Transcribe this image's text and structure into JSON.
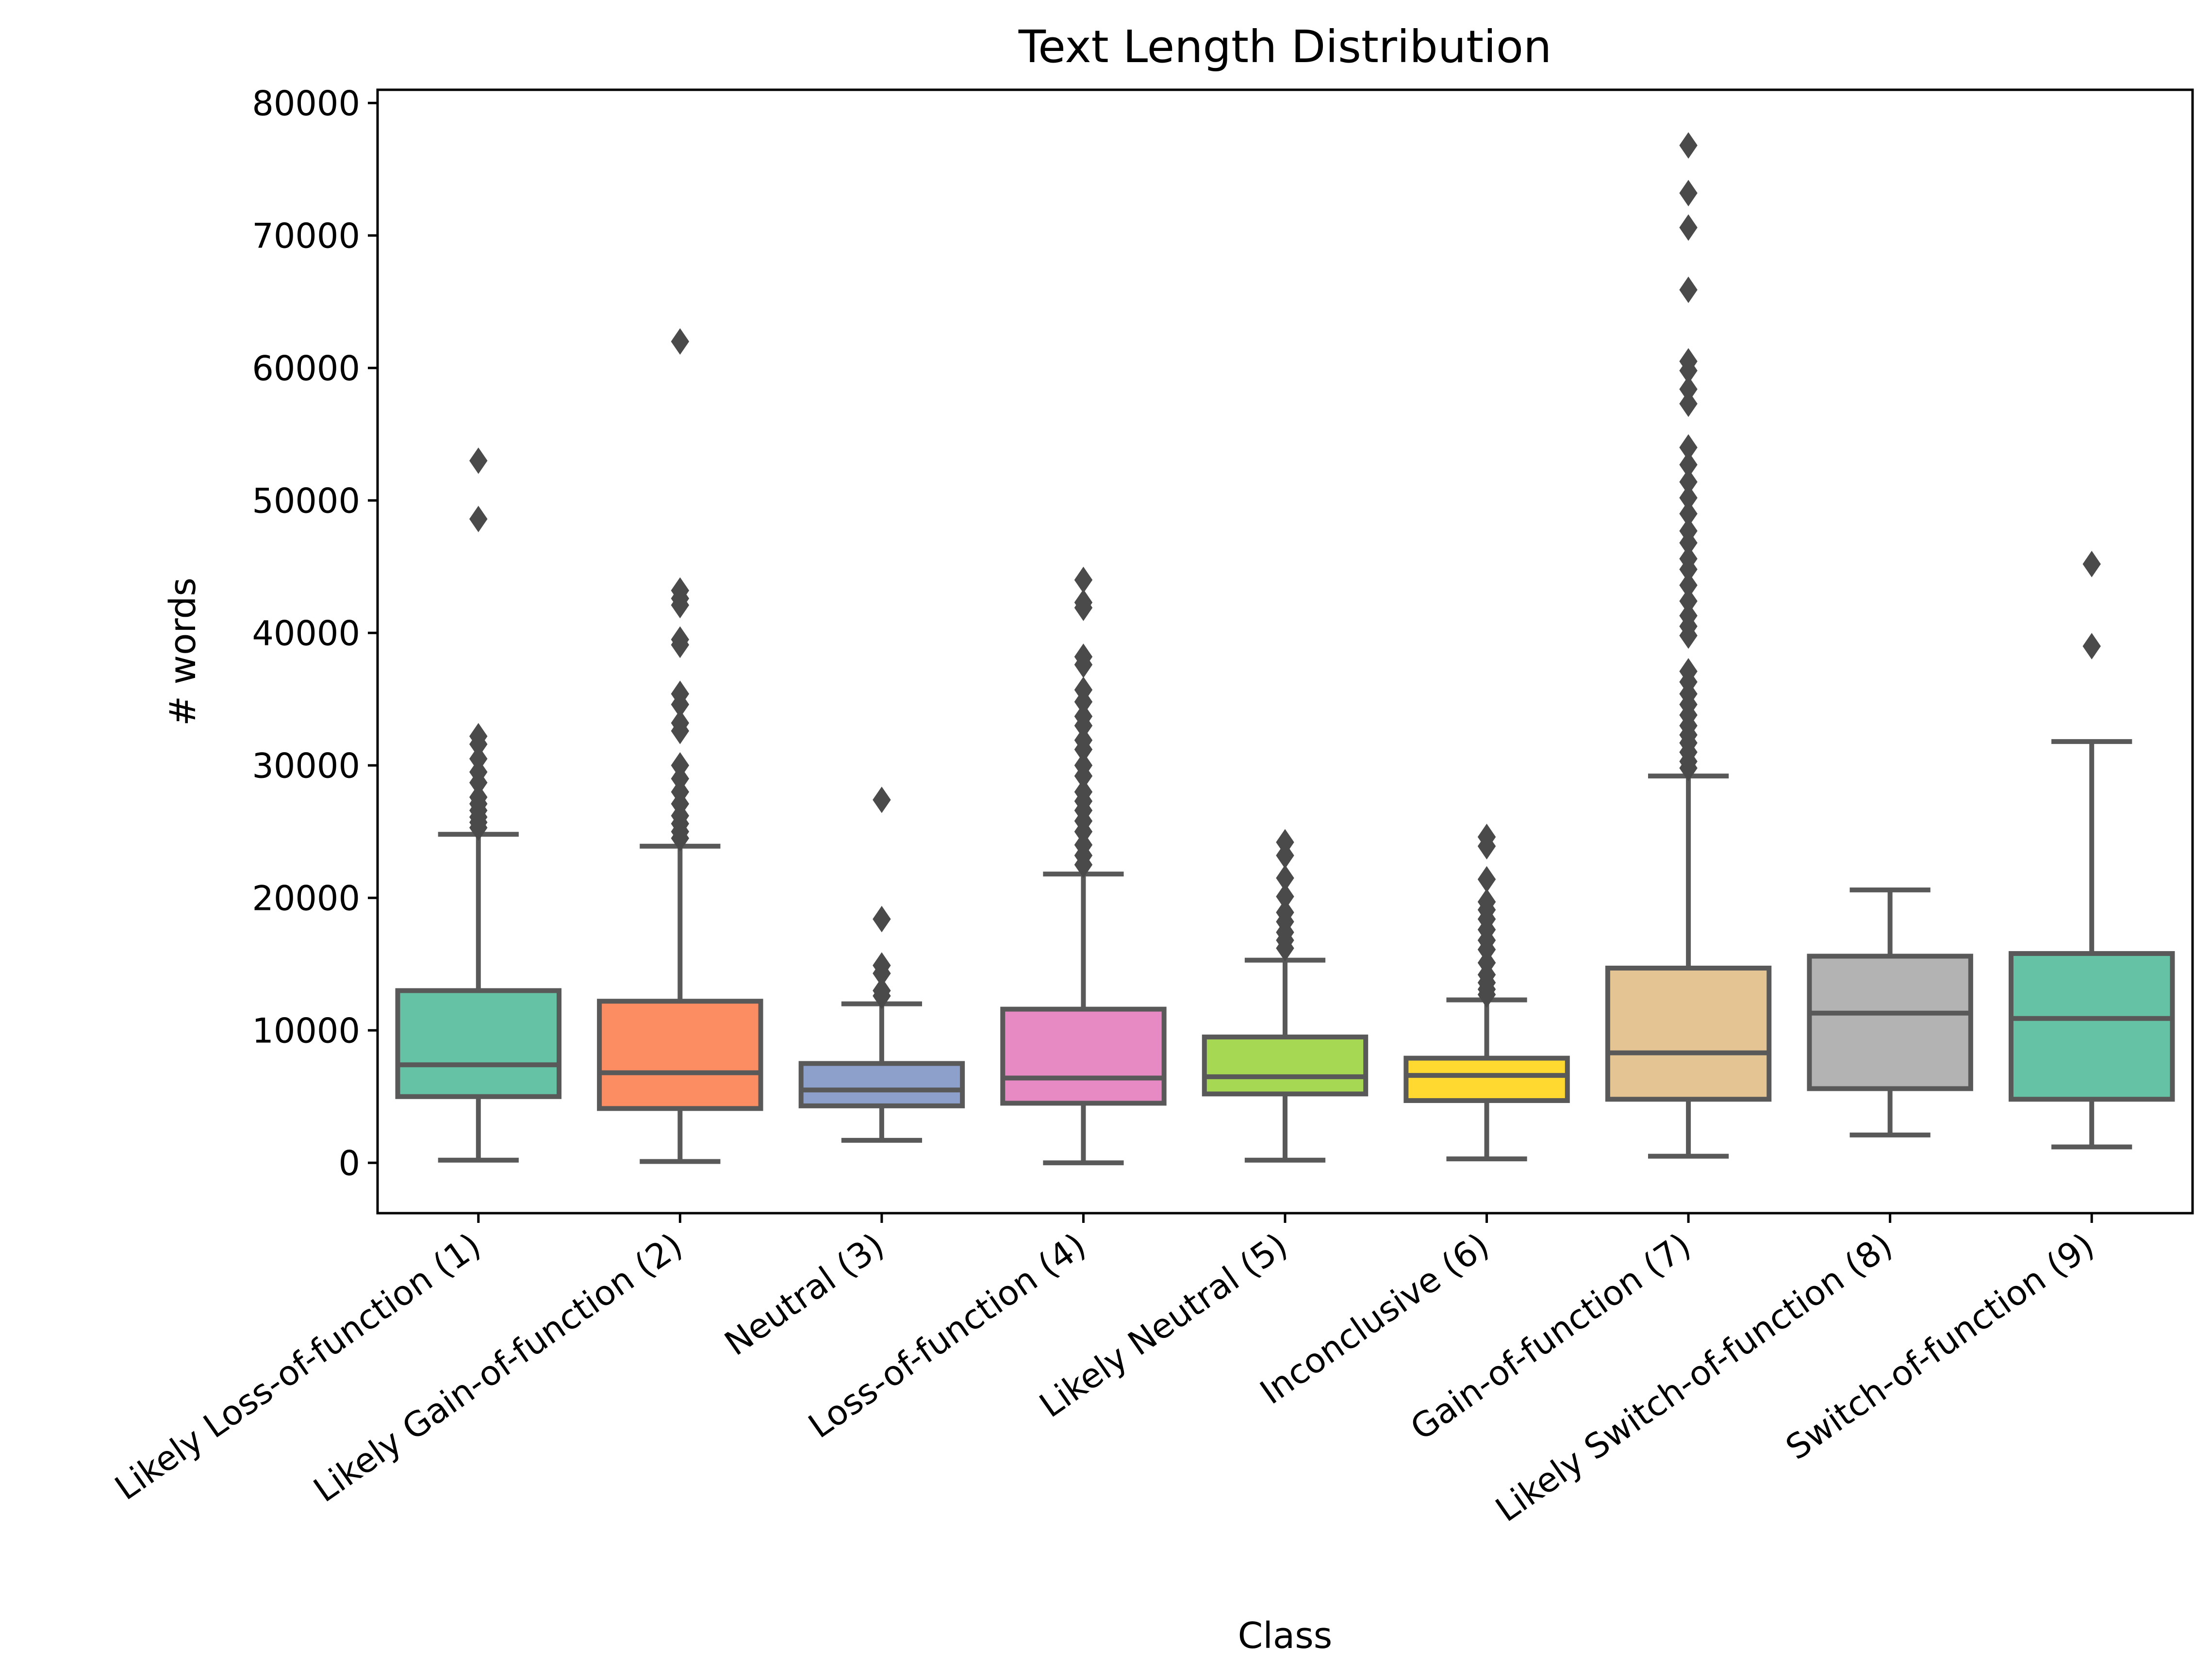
{
  "chart_data": {
    "type": "box",
    "title": "Text Length Distribution",
    "xlabel": "Class",
    "ylabel": "# words",
    "ylim": [
      -3800,
      81000
    ],
    "yticks": [
      0,
      10000,
      20000,
      30000,
      40000,
      50000,
      60000,
      70000,
      80000
    ],
    "categories": [
      "Likely Loss-of-function (1)",
      "Likely Gain-of-function (2)",
      "Neutral (3)",
      "Loss-of-function (4)",
      "Likely Neutral (5)",
      "Inconclusive (6)",
      "Gain-of-function (7)",
      "Likely Switch-of-function (8)",
      "Switch-of-function (9)"
    ],
    "colors": [
      "#66c2a5",
      "#fc8d62",
      "#8da0cb",
      "#e78ac3",
      "#a6d854",
      "#ffd92f",
      "#e5c494",
      "#b3b3b3",
      "#66c2a5"
    ],
    "boxes": [
      {
        "whisker_low": 200,
        "q1": 5000,
        "median": 7400,
        "q3": 13000,
        "whisker_high": 24800,
        "fliers": [
          25300,
          25700,
          26100,
          26600,
          27100,
          27600,
          28700,
          29500,
          30500,
          31600,
          32200,
          48600,
          53000
        ]
      },
      {
        "whisker_low": 100,
        "q1": 4100,
        "median": 6800,
        "q3": 12200,
        "whisker_high": 23900,
        "fliers": [
          24500,
          25000,
          25600,
          26200,
          27100,
          28000,
          29000,
          30000,
          32600,
          33200,
          34600,
          35400,
          39100,
          39500,
          42100,
          42600,
          43200,
          62000
        ]
      },
      {
        "whisker_low": 1700,
        "q1": 4300,
        "median": 5500,
        "q3": 7500,
        "whisker_high": 12000,
        "fliers": [
          12600,
          13000,
          14300,
          14900,
          18400,
          27400
        ]
      },
      {
        "whisker_low": 0,
        "q1": 4500,
        "median": 6400,
        "q3": 11600,
        "whisker_high": 21800,
        "fliers": [
          22500,
          23200,
          24000,
          25000,
          25800,
          26600,
          27300,
          28000,
          29200,
          30000,
          31200,
          31900,
          33000,
          33700,
          34800,
          35700,
          37600,
          38200,
          41900,
          42300,
          44000
        ]
      },
      {
        "whisker_low": 200,
        "q1": 5200,
        "median": 6500,
        "q3": 9500,
        "whisker_high": 15300,
        "fliers": [
          16200,
          16800,
          17400,
          18200,
          18900,
          20100,
          21500,
          23200,
          24200
        ]
      },
      {
        "whisker_low": 300,
        "q1": 4700,
        "median": 6600,
        "q3": 7900,
        "whisker_high": 12300,
        "fliers": [
          12700,
          13100,
          13600,
          14200,
          15100,
          16100,
          16800,
          17600,
          18400,
          19100,
          19700,
          21400,
          23900,
          24600
        ]
      },
      {
        "whisker_low": 500,
        "q1": 4800,
        "median": 8300,
        "q3": 14700,
        "whisker_high": 29200,
        "fliers": [
          29800,
          30300,
          31000,
          31700,
          32300,
          33000,
          33800,
          34600,
          35400,
          36300,
          37100,
          39800,
          40500,
          41300,
          42400,
          43600,
          44800,
          45600,
          46800,
          47700,
          49000,
          50200,
          51400,
          52700,
          54000,
          57300,
          58400,
          59800,
          60500,
          65900,
          70600,
          73200,
          76800
        ]
      },
      {
        "whisker_low": 2100,
        "q1": 5600,
        "median": 11300,
        "q3": 15600,
        "whisker_high": 20600,
        "fliers": []
      },
      {
        "whisker_low": 1200,
        "q1": 4800,
        "median": 10900,
        "q3": 15800,
        "whisker_high": 31800,
        "fliers": [
          39000,
          45200
        ]
      }
    ]
  }
}
